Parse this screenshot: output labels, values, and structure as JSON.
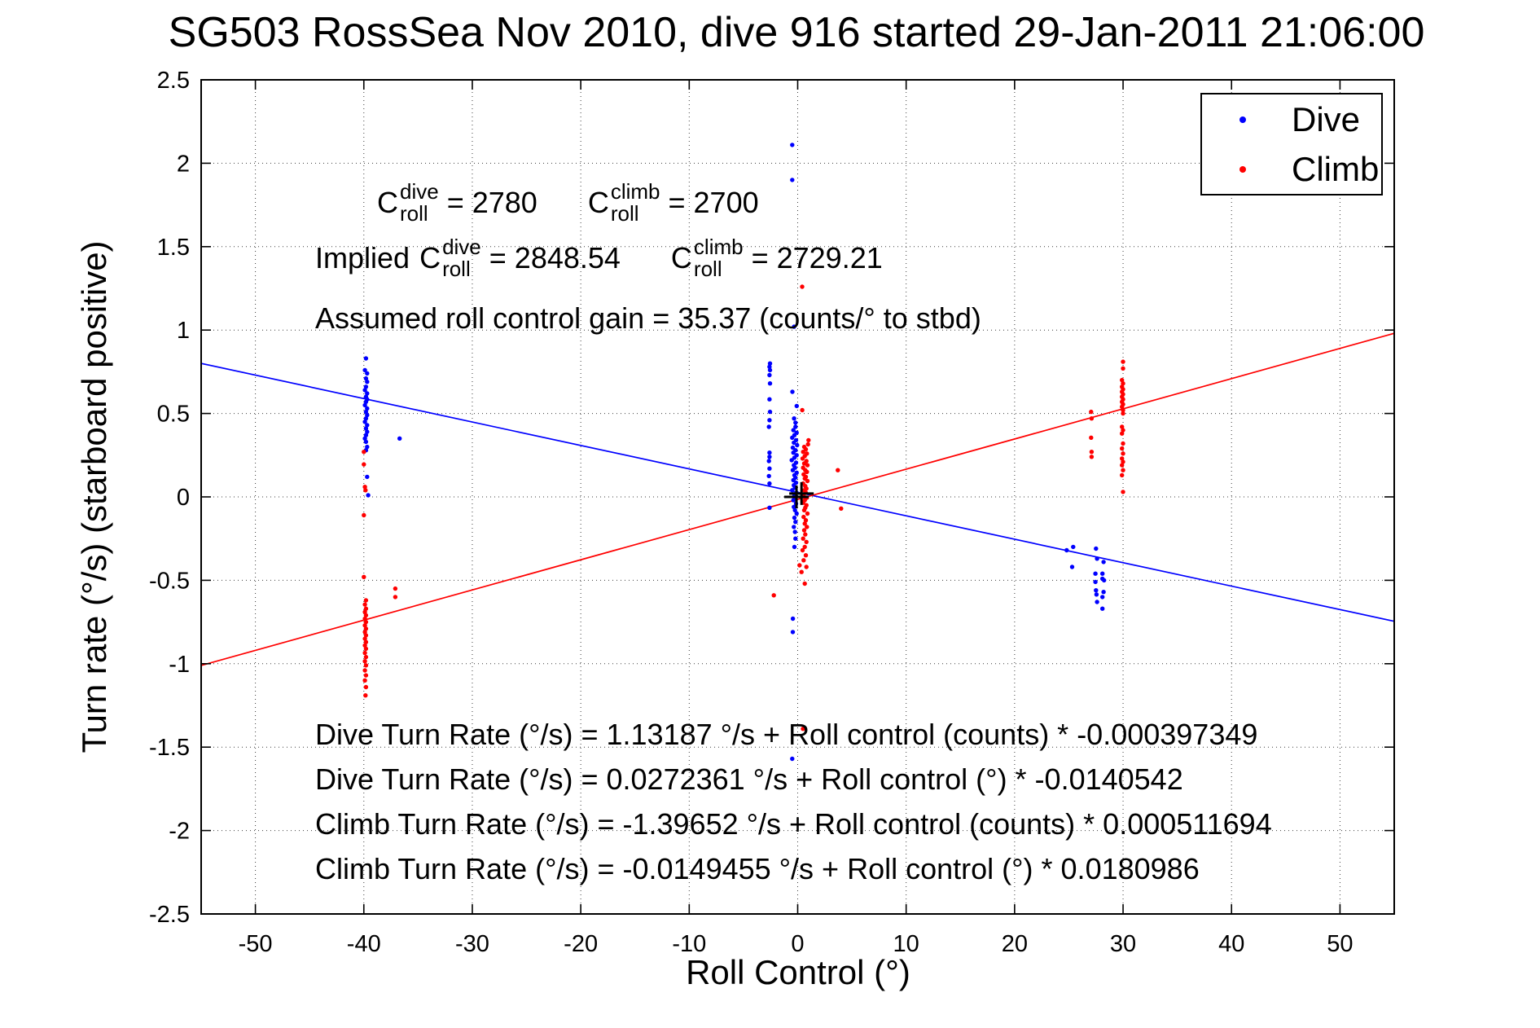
{
  "chart_data": {
    "type": "scatter",
    "title": "SG503 RossSea Nov 2010, dive 916 started 29-Jan-2011 21:06:00",
    "xlabel": "Roll Control (°)",
    "ylabel": "Turn rate (°/s) (starboard positive)",
    "xlim": [
      -55,
      55
    ],
    "ylim": [
      -2.5,
      2.5
    ],
    "xticks": [
      -50,
      -40,
      -30,
      -20,
      -10,
      0,
      10,
      20,
      30,
      40,
      50
    ],
    "xtick_labels": [
      "-50",
      "-40",
      "-30",
      "-20",
      "-10",
      "0",
      "10",
      "20",
      "30",
      "40",
      "50"
    ],
    "yticks": [
      -2.5,
      -2,
      -1.5,
      -1,
      -0.5,
      0,
      0.5,
      1,
      1.5,
      2,
      2.5
    ],
    "ytick_labels": [
      "-2.5",
      "-2",
      "-1.5",
      "-1",
      "-0.5",
      "0",
      "0.5",
      "1",
      "1.5",
      "2",
      "2.5"
    ],
    "grid": "dotted",
    "legend": {
      "position": "top-right",
      "items": [
        {
          "label": "Dive",
          "color": "#0000FF"
        },
        {
          "label": "Climb",
          "color": "#FF0000"
        }
      ]
    },
    "series": [
      {
        "name": "Dive",
        "color": "#0000FF",
        "marker": "point",
        "points": [
          [
            -39.8,
            0.83
          ],
          [
            -39.9,
            0.76
          ],
          [
            -39.7,
            0.74
          ],
          [
            -39.8,
            0.71
          ],
          [
            -39.7,
            0.69
          ],
          [
            -39.8,
            0.66
          ],
          [
            -39.9,
            0.64
          ],
          [
            -39.7,
            0.62
          ],
          [
            -39.8,
            0.6
          ],
          [
            -39.7,
            0.585
          ],
          [
            -39.8,
            0.57
          ],
          [
            -39.9,
            0.55
          ],
          [
            -39.7,
            0.53
          ],
          [
            -39.8,
            0.51
          ],
          [
            -39.7,
            0.49
          ],
          [
            -39.8,
            0.47
          ],
          [
            -39.9,
            0.45
          ],
          [
            -39.7,
            0.43
          ],
          [
            -39.8,
            0.41
          ],
          [
            -39.7,
            0.39
          ],
          [
            -39.8,
            0.37
          ],
          [
            -39.9,
            0.35
          ],
          [
            -39.8,
            0.33
          ],
          [
            -39.7,
            0.3
          ],
          [
            -39.8,
            0.28
          ],
          [
            -39.7,
            0.12
          ],
          [
            -39.6,
            0.01
          ],
          [
            -36.7,
            0.35
          ],
          [
            -0.5,
            2.11
          ],
          [
            -0.5,
            1.9
          ],
          [
            -0.34,
            1.02
          ],
          [
            -2.55,
            0.8
          ],
          [
            -2.6,
            0.78
          ],
          [
            -2.55,
            0.76
          ],
          [
            -2.6,
            0.73
          ],
          [
            -2.55,
            0.68
          ],
          [
            -2.6,
            0.585
          ],
          [
            -2.55,
            0.51
          ],
          [
            -2.6,
            0.46
          ],
          [
            -2.65,
            0.42
          ],
          [
            -2.6,
            0.265
          ],
          [
            -2.6,
            0.24
          ],
          [
            -2.65,
            0.215
          ],
          [
            -2.6,
            0.17
          ],
          [
            -2.65,
            0.125
          ],
          [
            -2.6,
            0.08
          ],
          [
            -2.6,
            -0.065
          ],
          [
            -0.49,
            0.63
          ],
          [
            -0.09,
            0.545
          ],
          [
            -0.33,
            0.47
          ],
          [
            -0.2,
            0.445
          ],
          [
            -0.2,
            0.42
          ],
          [
            -0.4,
            0.4
          ],
          [
            -0.1,
            0.385
          ],
          [
            -0.3,
            0.37
          ],
          [
            -0.5,
            0.355
          ],
          [
            -0.15,
            0.34
          ],
          [
            -0.35,
            0.325
          ],
          [
            -0.05,
            0.31
          ],
          [
            -0.45,
            0.295
          ],
          [
            -0.2,
            0.28
          ],
          [
            -0.4,
            0.265
          ],
          [
            -0.1,
            0.25
          ],
          [
            -0.3,
            0.235
          ],
          [
            -0.55,
            0.22
          ],
          [
            -0.15,
            0.205
          ],
          [
            -0.35,
            0.19
          ],
          [
            -0.25,
            0.175
          ],
          [
            -0.45,
            0.16
          ],
          [
            -0.1,
            0.145
          ],
          [
            -0.3,
            0.13
          ],
          [
            -0.2,
            0.115
          ],
          [
            -0.4,
            0.1
          ],
          [
            -0.15,
            0.085
          ],
          [
            -0.35,
            0.07
          ],
          [
            -0.25,
            0.055
          ],
          [
            -0.5,
            0.04
          ],
          [
            -0.1,
            0.025
          ],
          [
            -0.3,
            0.01
          ],
          [
            -0.2,
            -0.005
          ],
          [
            -0.4,
            -0.02
          ],
          [
            -0.15,
            -0.04
          ],
          [
            -0.35,
            -0.06
          ],
          [
            -0.25,
            -0.08
          ],
          [
            -0.1,
            -0.1
          ],
          [
            -0.3,
            -0.125
          ],
          [
            -0.2,
            -0.15
          ],
          [
            -0.35,
            -0.18
          ],
          [
            -0.25,
            -0.21
          ],
          [
            -0.2,
            -0.25
          ],
          [
            -0.3,
            -0.3
          ],
          [
            -0.44,
            -0.73
          ],
          [
            -0.45,
            -0.81
          ],
          [
            -0.5,
            -1.57
          ],
          [
            25.4,
            -0.3
          ],
          [
            24.8,
            -0.32
          ],
          [
            27.5,
            -0.31
          ],
          [
            27.6,
            -0.37
          ],
          [
            25.3,
            -0.42
          ],
          [
            28.2,
            -0.39
          ],
          [
            27.45,
            -0.46
          ],
          [
            28.1,
            -0.46
          ],
          [
            28.1,
            -0.49
          ],
          [
            27.45,
            -0.51
          ],
          [
            28.25,
            -0.5
          ],
          [
            27.5,
            -0.56
          ],
          [
            27.55,
            -0.585
          ],
          [
            28.2,
            -0.57
          ],
          [
            28.1,
            -0.6
          ],
          [
            27.6,
            -0.63
          ],
          [
            28.1,
            -0.67
          ]
        ]
      },
      {
        "name": "Climb",
        "color": "#FF0000",
        "marker": "point",
        "points": [
          [
            -40.0,
            0.27
          ],
          [
            -40.0,
            0.195
          ],
          [
            -39.9,
            0.06
          ],
          [
            -39.85,
            0.04
          ],
          [
            -40.0,
            -0.11
          ],
          [
            -40.0,
            -0.48
          ],
          [
            -37.1,
            -0.55
          ],
          [
            -37.1,
            -0.6
          ],
          [
            -39.8,
            -0.62
          ],
          [
            -39.9,
            -0.645
          ],
          [
            -39.8,
            -0.67
          ],
          [
            -39.9,
            -0.69
          ],
          [
            -39.8,
            -0.71
          ],
          [
            -39.9,
            -0.73
          ],
          [
            -39.8,
            -0.75
          ],
          [
            -39.9,
            -0.77
          ],
          [
            -39.8,
            -0.79
          ],
          [
            -39.9,
            -0.81
          ],
          [
            -39.8,
            -0.83
          ],
          [
            -39.9,
            -0.85
          ],
          [
            -39.8,
            -0.87
          ],
          [
            -39.9,
            -0.89
          ],
          [
            -39.8,
            -0.91
          ],
          [
            -39.9,
            -0.935
          ],
          [
            -39.8,
            -0.96
          ],
          [
            -39.9,
            -0.985
          ],
          [
            -39.8,
            -1.01
          ],
          [
            -39.9,
            -1.04
          ],
          [
            -39.8,
            -1.07
          ],
          [
            -39.9,
            -1.1
          ],
          [
            -39.8,
            -1.14
          ],
          [
            -39.85,
            -1.19
          ],
          [
            0.41,
            1.26
          ],
          [
            0.42,
            0.52
          ],
          [
            1.0,
            0.34
          ],
          [
            0.95,
            0.315
          ],
          [
            3.7,
            0.16
          ],
          [
            4.0,
            -0.07
          ],
          [
            -2.2,
            -0.59
          ],
          [
            0.65,
            -0.52
          ],
          [
            0.49,
            -1.39
          ],
          [
            0.6,
            0.3
          ],
          [
            0.75,
            0.285
          ],
          [
            0.5,
            0.27
          ],
          [
            0.85,
            0.26
          ],
          [
            0.65,
            0.245
          ],
          [
            0.45,
            0.23
          ],
          [
            0.8,
            0.215
          ],
          [
            0.6,
            0.2
          ],
          [
            0.9,
            0.19
          ],
          [
            0.5,
            0.175
          ],
          [
            0.7,
            0.16
          ],
          [
            0.85,
            0.15
          ],
          [
            0.55,
            0.135
          ],
          [
            0.75,
            0.12
          ],
          [
            0.65,
            0.11
          ],
          [
            0.9,
            0.095
          ],
          [
            0.5,
            0.08
          ],
          [
            0.7,
            0.065
          ],
          [
            0.8,
            0.05
          ],
          [
            0.6,
            0.04
          ],
          [
            0.75,
            0.025
          ],
          [
            0.55,
            0.01
          ],
          [
            0.85,
            -0.005
          ],
          [
            0.65,
            -0.02
          ],
          [
            0.5,
            -0.035
          ],
          [
            0.8,
            -0.05
          ],
          [
            0.7,
            -0.065
          ],
          [
            0.6,
            -0.08
          ],
          [
            0.9,
            -0.1
          ],
          [
            0.55,
            -0.12
          ],
          [
            0.75,
            -0.14
          ],
          [
            0.65,
            -0.16
          ],
          [
            0.85,
            -0.18
          ],
          [
            0.6,
            -0.2
          ],
          [
            0.7,
            -0.225
          ],
          [
            0.5,
            -0.25
          ],
          [
            0.8,
            -0.27
          ],
          [
            0.65,
            -0.3
          ],
          [
            0.45,
            -0.32
          ],
          [
            0.75,
            -0.35
          ],
          [
            0.55,
            -0.38
          ],
          [
            0.8,
            -0.42
          ],
          [
            0.35,
            -0.45
          ],
          [
            0.17,
            -0.41
          ],
          [
            30,
            0.81
          ],
          [
            30,
            0.77
          ],
          [
            29.9,
            0.7
          ],
          [
            30,
            0.68
          ],
          [
            29.9,
            0.66
          ],
          [
            30,
            0.645
          ],
          [
            29.9,
            0.63
          ],
          [
            30,
            0.615
          ],
          [
            29.9,
            0.6
          ],
          [
            30,
            0.585
          ],
          [
            29.9,
            0.57
          ],
          [
            30,
            0.555
          ],
          [
            29.9,
            0.54
          ],
          [
            30,
            0.52
          ],
          [
            30,
            0.5
          ],
          [
            29.9,
            0.42
          ],
          [
            30,
            0.4
          ],
          [
            29.9,
            0.38
          ],
          [
            30,
            0.32
          ],
          [
            29.9,
            0.29
          ],
          [
            30,
            0.26
          ],
          [
            29.9,
            0.23
          ],
          [
            30,
            0.21
          ],
          [
            29.9,
            0.19
          ],
          [
            30,
            0.16
          ],
          [
            29.9,
            0.13
          ],
          [
            30,
            0.03
          ],
          [
            27.05,
            0.51
          ],
          [
            27.1,
            0.47
          ],
          [
            27.05,
            0.355
          ],
          [
            27.1,
            0.27
          ],
          [
            27.1,
            0.24
          ]
        ]
      }
    ],
    "fit_lines": [
      {
        "series": "Dive",
        "color": "#0000FF",
        "intercept_deg_s": 0.0272361,
        "slope_per_deg": -0.0140542
      },
      {
        "series": "Climb",
        "color": "#FF0000",
        "intercept_deg_s": -0.0149455,
        "slope_per_deg": 0.0180986
      }
    ],
    "mean_markers": {
      "shape": "plus",
      "color": "#000000",
      "points": [
        [
          -0.11,
          0.0
        ],
        [
          0.35,
          0.02
        ]
      ]
    },
    "annotations": {
      "c_dive": {
        "sym": "C",
        "sup": "dive",
        "sub": "roll",
        "value": "= 2780"
      },
      "c_climb": {
        "sym": "C",
        "sup": "climb",
        "sub": "roll",
        "value": "= 2700"
      },
      "implied_prefix": "Implied",
      "implied_c_dive": {
        "sym": "C",
        "sup": "dive",
        "sub": "roll",
        "value": "= 2848.54"
      },
      "implied_c_climb": {
        "sym": "C",
        "sup": "climb",
        "sub": "roll",
        "value": "= 2729.21"
      },
      "gain_line": "Assumed roll control gain = 35.37 (counts/° to stbd)",
      "equations": [
        "Dive Turn Rate (°/s) = 1.13187 °/s + Roll control (counts) * -0.000397349",
        "Dive Turn Rate (°/s) = 0.0272361 °/s + Roll control (°) * -0.0140542",
        "Climb Turn Rate (°/s) = -1.39652 °/s + Roll control (counts) * 0.000511694",
        "Climb Turn Rate (°/s) = -0.0149455 °/s + Roll control (°) * 0.0180986"
      ]
    }
  }
}
